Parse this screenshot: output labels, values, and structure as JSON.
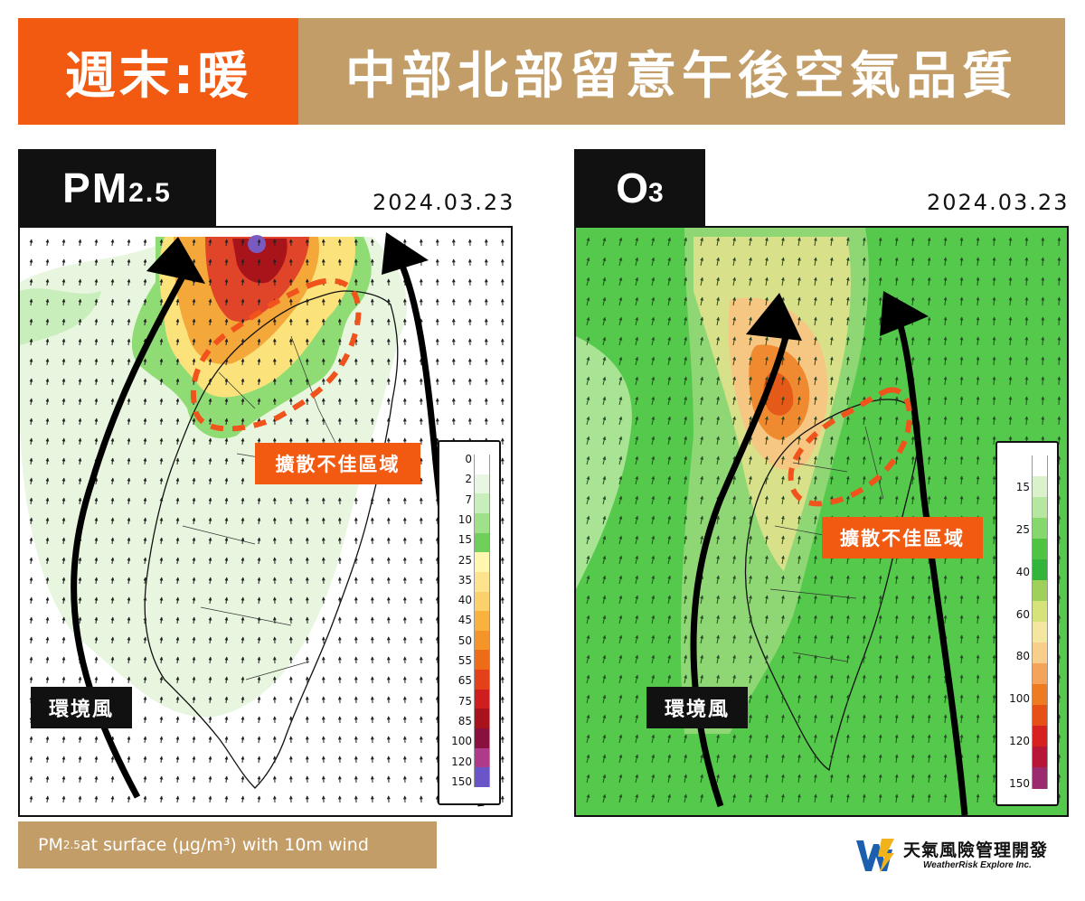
{
  "banner": {
    "left_text": "週末:暖",
    "right_text": "中部北部留意午後空氣品質"
  },
  "pm_panel": {
    "tag_main": "PM",
    "tag_sub": "2.5",
    "date": "2024.03.23",
    "wind_label": "環境風",
    "bad_label": "擴散不佳區域",
    "legend": {
      "labels": [
        "0",
        "2",
        "7",
        "10",
        "15",
        "25",
        "35",
        "40",
        "45",
        "50",
        "55",
        "65",
        "75",
        "85",
        "100",
        "120",
        "150"
      ],
      "colors": [
        "#ffffff",
        "#e9f7e2",
        "#c8eebb",
        "#9fe08a",
        "#6fcf5a",
        "#fff6b0",
        "#fde48c",
        "#fcd06a",
        "#f9b23e",
        "#f59428",
        "#ee6c18",
        "#e4401a",
        "#cf1e1e",
        "#a8121a",
        "#8a1040",
        "#b03a8a",
        "#6a54c8"
      ]
    },
    "caption_main": "PM",
    "caption_sub": "2.5",
    "caption_rest": " at surface (μg/m³) with 10m wind"
  },
  "o3_panel": {
    "tag_main": "O",
    "tag_sub": "3",
    "date": "2024.03.23",
    "wind_label": "環境風",
    "bad_label": "擴散不佳區域",
    "legend": {
      "labels": [
        "15",
        "25",
        "40",
        "60",
        "80",
        "100",
        "120",
        "150"
      ],
      "colors": [
        "#ffffff",
        "#d9f2cc",
        "#b6e7a0",
        "#86d86e",
        "#4fc443",
        "#33b43a",
        "#9fd15a",
        "#d6e27a",
        "#f4e6a0",
        "#f7cf8a",
        "#f3a35a",
        "#ee7a22",
        "#e65016",
        "#d72020",
        "#b81636",
        "#9c2a6e"
      ]
    }
  },
  "logo": {
    "name": "天氣風險管理開發",
    "english": "WeatherRisk Explore Inc."
  }
}
